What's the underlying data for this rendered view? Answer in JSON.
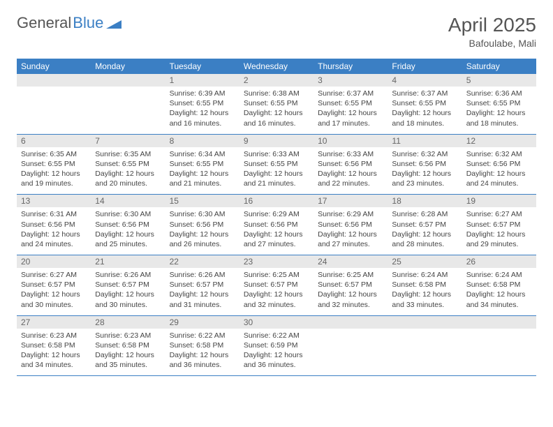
{
  "brand": {
    "part1": "General",
    "part2": "Blue"
  },
  "title": "April 2025",
  "location": "Bafoulabe, Mali",
  "colors": {
    "header_bg": "#3b7fc4",
    "header_text": "#ffffff",
    "daynum_bg": "#e8e8e8",
    "text": "#444444",
    "border": "#3b7fc4"
  },
  "weekdays": [
    "Sunday",
    "Monday",
    "Tuesday",
    "Wednesday",
    "Thursday",
    "Friday",
    "Saturday"
  ],
  "weeks": [
    [
      {
        "n": "",
        "lines": []
      },
      {
        "n": "",
        "lines": []
      },
      {
        "n": "1",
        "lines": [
          "Sunrise: 6:39 AM",
          "Sunset: 6:55 PM",
          "Daylight: 12 hours and 16 minutes."
        ]
      },
      {
        "n": "2",
        "lines": [
          "Sunrise: 6:38 AM",
          "Sunset: 6:55 PM",
          "Daylight: 12 hours and 16 minutes."
        ]
      },
      {
        "n": "3",
        "lines": [
          "Sunrise: 6:37 AM",
          "Sunset: 6:55 PM",
          "Daylight: 12 hours and 17 minutes."
        ]
      },
      {
        "n": "4",
        "lines": [
          "Sunrise: 6:37 AM",
          "Sunset: 6:55 PM",
          "Daylight: 12 hours and 18 minutes."
        ]
      },
      {
        "n": "5",
        "lines": [
          "Sunrise: 6:36 AM",
          "Sunset: 6:55 PM",
          "Daylight: 12 hours and 18 minutes."
        ]
      }
    ],
    [
      {
        "n": "6",
        "lines": [
          "Sunrise: 6:35 AM",
          "Sunset: 6:55 PM",
          "Daylight: 12 hours and 19 minutes."
        ]
      },
      {
        "n": "7",
        "lines": [
          "Sunrise: 6:35 AM",
          "Sunset: 6:55 PM",
          "Daylight: 12 hours and 20 minutes."
        ]
      },
      {
        "n": "8",
        "lines": [
          "Sunrise: 6:34 AM",
          "Sunset: 6:55 PM",
          "Daylight: 12 hours and 21 minutes."
        ]
      },
      {
        "n": "9",
        "lines": [
          "Sunrise: 6:33 AM",
          "Sunset: 6:55 PM",
          "Daylight: 12 hours and 21 minutes."
        ]
      },
      {
        "n": "10",
        "lines": [
          "Sunrise: 6:33 AM",
          "Sunset: 6:56 PM",
          "Daylight: 12 hours and 22 minutes."
        ]
      },
      {
        "n": "11",
        "lines": [
          "Sunrise: 6:32 AM",
          "Sunset: 6:56 PM",
          "Daylight: 12 hours and 23 minutes."
        ]
      },
      {
        "n": "12",
        "lines": [
          "Sunrise: 6:32 AM",
          "Sunset: 6:56 PM",
          "Daylight: 12 hours and 24 minutes."
        ]
      }
    ],
    [
      {
        "n": "13",
        "lines": [
          "Sunrise: 6:31 AM",
          "Sunset: 6:56 PM",
          "Daylight: 12 hours and 24 minutes."
        ]
      },
      {
        "n": "14",
        "lines": [
          "Sunrise: 6:30 AM",
          "Sunset: 6:56 PM",
          "Daylight: 12 hours and 25 minutes."
        ]
      },
      {
        "n": "15",
        "lines": [
          "Sunrise: 6:30 AM",
          "Sunset: 6:56 PM",
          "Daylight: 12 hours and 26 minutes."
        ]
      },
      {
        "n": "16",
        "lines": [
          "Sunrise: 6:29 AM",
          "Sunset: 6:56 PM",
          "Daylight: 12 hours and 27 minutes."
        ]
      },
      {
        "n": "17",
        "lines": [
          "Sunrise: 6:29 AM",
          "Sunset: 6:56 PM",
          "Daylight: 12 hours and 27 minutes."
        ]
      },
      {
        "n": "18",
        "lines": [
          "Sunrise: 6:28 AM",
          "Sunset: 6:57 PM",
          "Daylight: 12 hours and 28 minutes."
        ]
      },
      {
        "n": "19",
        "lines": [
          "Sunrise: 6:27 AM",
          "Sunset: 6:57 PM",
          "Daylight: 12 hours and 29 minutes."
        ]
      }
    ],
    [
      {
        "n": "20",
        "lines": [
          "Sunrise: 6:27 AM",
          "Sunset: 6:57 PM",
          "Daylight: 12 hours and 30 minutes."
        ]
      },
      {
        "n": "21",
        "lines": [
          "Sunrise: 6:26 AM",
          "Sunset: 6:57 PM",
          "Daylight: 12 hours and 30 minutes."
        ]
      },
      {
        "n": "22",
        "lines": [
          "Sunrise: 6:26 AM",
          "Sunset: 6:57 PM",
          "Daylight: 12 hours and 31 minutes."
        ]
      },
      {
        "n": "23",
        "lines": [
          "Sunrise: 6:25 AM",
          "Sunset: 6:57 PM",
          "Daylight: 12 hours and 32 minutes."
        ]
      },
      {
        "n": "24",
        "lines": [
          "Sunrise: 6:25 AM",
          "Sunset: 6:57 PM",
          "Daylight: 12 hours and 32 minutes."
        ]
      },
      {
        "n": "25",
        "lines": [
          "Sunrise: 6:24 AM",
          "Sunset: 6:58 PM",
          "Daylight: 12 hours and 33 minutes."
        ]
      },
      {
        "n": "26",
        "lines": [
          "Sunrise: 6:24 AM",
          "Sunset: 6:58 PM",
          "Daylight: 12 hours and 34 minutes."
        ]
      }
    ],
    [
      {
        "n": "27",
        "lines": [
          "Sunrise: 6:23 AM",
          "Sunset: 6:58 PM",
          "Daylight: 12 hours and 34 minutes."
        ]
      },
      {
        "n": "28",
        "lines": [
          "Sunrise: 6:23 AM",
          "Sunset: 6:58 PM",
          "Daylight: 12 hours and 35 minutes."
        ]
      },
      {
        "n": "29",
        "lines": [
          "Sunrise: 6:22 AM",
          "Sunset: 6:58 PM",
          "Daylight: 12 hours and 36 minutes."
        ]
      },
      {
        "n": "30",
        "lines": [
          "Sunrise: 6:22 AM",
          "Sunset: 6:59 PM",
          "Daylight: 12 hours and 36 minutes."
        ]
      },
      {
        "n": "",
        "lines": []
      },
      {
        "n": "",
        "lines": []
      },
      {
        "n": "",
        "lines": []
      }
    ]
  ]
}
